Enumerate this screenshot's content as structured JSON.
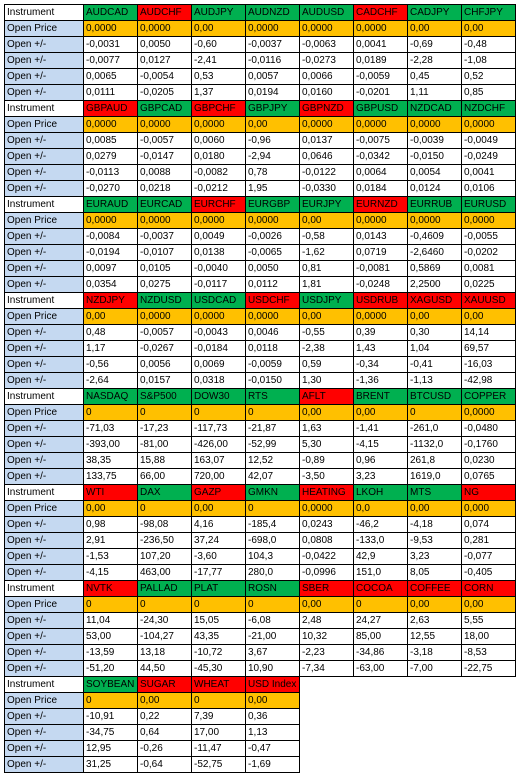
{
  "colors": {
    "green": "#00b050",
    "red": "#ff0000",
    "orange": "#ffc000",
    "label_blue": "#c5d9f1"
  },
  "labels": {
    "instrument": "Instrument",
    "open_price": "Open Price",
    "open_delta": "Open +/-"
  },
  "blocks": [
    {
      "instruments": [
        {
          "name": "AUDCAD",
          "color": "green"
        },
        {
          "name": "AUDCHF",
          "color": "red"
        },
        {
          "name": "AUDJPY",
          "color": "green"
        },
        {
          "name": "AUDNZD",
          "color": "green"
        },
        {
          "name": "AUDUSD",
          "color": "green"
        },
        {
          "name": "CADCHF",
          "color": "red"
        },
        {
          "name": "CADJPY",
          "color": "green"
        },
        {
          "name": "CHFJPY",
          "color": "green"
        }
      ],
      "open_price": [
        "0,0000",
        "0,0000",
        "0,00",
        "0,0000",
        "0,0000",
        "0,0000",
        "0,00",
        "0,00"
      ],
      "rows": [
        [
          "-0,0031",
          "0,0050",
          "-0,60",
          "-0,0037",
          "-0,0063",
          "0,0041",
          "-0,69",
          "-0,48"
        ],
        [
          "-0,0077",
          "0,0127",
          "-2,41",
          "-0,0116",
          "-0,0273",
          "0,0189",
          "-2,28",
          "-1,08"
        ],
        [
          "0,0065",
          "-0,0054",
          "0,53",
          "0,0057",
          "0,0066",
          "-0,0059",
          "0,45",
          "0,52"
        ],
        [
          "0,0111",
          "-0,0205",
          "1,37",
          "0,0194",
          "0,0160",
          "-0,0201",
          "1,11",
          "0,85"
        ]
      ]
    },
    {
      "instruments": [
        {
          "name": "GBPAUD",
          "color": "red"
        },
        {
          "name": "GBPCAD",
          "color": "green"
        },
        {
          "name": "GBPCHF",
          "color": "red"
        },
        {
          "name": "GBPJPY",
          "color": "green"
        },
        {
          "name": "GBPNZD",
          "color": "red"
        },
        {
          "name": "GBPUSD",
          "color": "green"
        },
        {
          "name": "NZDCAD",
          "color": "green"
        },
        {
          "name": "NZDCHF",
          "color": "green"
        }
      ],
      "open_price": [
        "0,0000",
        "0,0000",
        "0,0000",
        "0,00",
        "0,0000",
        "0,0000",
        "0,0000",
        "0,0000"
      ],
      "rows": [
        [
          "0,0085",
          "-0,0057",
          "0,0060",
          "-0,96",
          "0,0137",
          "-0,0075",
          "-0,0039",
          "-0,0049"
        ],
        [
          "0,0279",
          "-0,0147",
          "0,0180",
          "-2,94",
          "0,0646",
          "-0,0342",
          "-0,0150",
          "-0,0249"
        ],
        [
          "-0,0113",
          "0,0088",
          "-0,0082",
          "0,78",
          "-0,0122",
          "0,0064",
          "0,0054",
          "0,0041"
        ],
        [
          "-0,0270",
          "0,0218",
          "-0,0212",
          "1,95",
          "-0,0330",
          "0,0184",
          "0,0124",
          "0,0106"
        ]
      ]
    },
    {
      "instruments": [
        {
          "name": "EURAUD",
          "color": "green"
        },
        {
          "name": "EURCAD",
          "color": "green"
        },
        {
          "name": "EURCHF",
          "color": "red"
        },
        {
          "name": "EURGBP",
          "color": "green"
        },
        {
          "name": "EURJPY",
          "color": "green"
        },
        {
          "name": "EURNZD",
          "color": "red"
        },
        {
          "name": "EURRUB",
          "color": "green"
        },
        {
          "name": "EURUSD",
          "color": "green"
        }
      ],
      "open_price": [
        "0,0000",
        "0,0000",
        "0,0000",
        "0,0000",
        "0,00",
        "0,0000",
        "0,0000",
        "0,0000"
      ],
      "rows": [
        [
          "-0,0084",
          "-0,0037",
          "0,0049",
          "-0,0026",
          "-0,58",
          "0,0143",
          "-0,4609",
          "-0,0055"
        ],
        [
          "-0,0194",
          "-0,0107",
          "0,0138",
          "-0,0065",
          "-1,62",
          "0,0719",
          "-2,6460",
          "-0,0202"
        ],
        [
          "0,0097",
          "0,0105",
          "-0,0040",
          "0,0050",
          "0,81",
          "-0,0081",
          "0,5869",
          "0,0081"
        ],
        [
          "0,0354",
          "0,0275",
          "-0,0117",
          "0,0112",
          "1,81",
          "-0,0248",
          "2,2500",
          "0,0225"
        ]
      ]
    },
    {
      "instruments": [
        {
          "name": "NZDJPY",
          "color": "red"
        },
        {
          "name": "NZDUSD",
          "color": "green"
        },
        {
          "name": "USDCAD",
          "color": "green"
        },
        {
          "name": "USDCHF",
          "color": "red"
        },
        {
          "name": "USDJPY",
          "color": "green"
        },
        {
          "name": "USDRUB",
          "color": "red"
        },
        {
          "name": "XAGUSD",
          "color": "red"
        },
        {
          "name": "XAUUSD",
          "color": "red"
        }
      ],
      "open_price": [
        "0,00",
        "0,0000",
        "0,0000",
        "0,0000",
        "0,00",
        "0,0000",
        "0,00",
        "0,00"
      ],
      "rows": [
        [
          "0,48",
          "-0,0057",
          "-0,0043",
          "0,0046",
          "-0,55",
          "0,39",
          "0,30",
          "14,14"
        ],
        [
          "1,17",
          "-0,0267",
          "-0,0184",
          "0,0118",
          "-2,38",
          "1,43",
          "1,04",
          "69,57"
        ],
        [
          "-0,56",
          "0,0056",
          "0,0069",
          "-0,0059",
          "0,59",
          "-0,34",
          "-0,41",
          "-16,03"
        ],
        [
          "-2,64",
          "0,0157",
          "0,0318",
          "-0,0150",
          "1,30",
          "-1,36",
          "-1,13",
          "-42,98"
        ]
      ]
    },
    {
      "instruments": [
        {
          "name": "NASDAQ",
          "color": "green"
        },
        {
          "name": "S&P500",
          "color": "green"
        },
        {
          "name": "DOW30",
          "color": "green"
        },
        {
          "name": "RTS",
          "color": "green"
        },
        {
          "name": "AFLT",
          "color": "red"
        },
        {
          "name": "BRENT",
          "color": "green"
        },
        {
          "name": "BTCUSD",
          "color": "green"
        },
        {
          "name": "COPPER",
          "color": "green"
        }
      ],
      "open_price": [
        "0",
        "0",
        "0",
        "0",
        "0,00",
        "0,00",
        "0",
        "0,0000"
      ],
      "rows": [
        [
          "-71,03",
          "-17,23",
          "-117,73",
          "-21,87",
          "1,63",
          "-1,41",
          "-261,0",
          "-0,0480"
        ],
        [
          "-393,00",
          "-81,00",
          "-426,00",
          "-52,99",
          "5,30",
          "-4,15",
          "-1132,0",
          "-0,1760"
        ],
        [
          "38,35",
          "15,88",
          "163,07",
          "12,52",
          "-0,89",
          "0,96",
          "261,8",
          "0,0230"
        ],
        [
          "133,75",
          "66,00",
          "720,00",
          "42,07",
          "-3,50",
          "3,23",
          "1619,0",
          "0,0765"
        ]
      ]
    },
    {
      "instruments": [
        {
          "name": "WTI",
          "color": "red"
        },
        {
          "name": "DAX",
          "color": "green"
        },
        {
          "name": "GAZP",
          "color": "red"
        },
        {
          "name": "GMKN",
          "color": "green"
        },
        {
          "name": "HEATING",
          "color": "red"
        },
        {
          "name": "LKOH",
          "color": "green"
        },
        {
          "name": "MTS",
          "color": "green"
        },
        {
          "name": "NG",
          "color": "red"
        }
      ],
      "open_price": [
        "0,00",
        "0",
        "0,00",
        "0",
        "0,0000",
        "0,0",
        "0,00",
        "0,000"
      ],
      "rows": [
        [
          "0,98",
          "-98,08",
          "4,16",
          "-185,4",
          "0,0243",
          "-46,2",
          "-4,18",
          "0,074"
        ],
        [
          "2,91",
          "-236,50",
          "37,24",
          "-698,0",
          "0,0808",
          "-133,0",
          "-9,53",
          "0,281"
        ],
        [
          "-1,53",
          "107,20",
          "-3,60",
          "104,3",
          "-0,0422",
          "42,9",
          "3,23",
          "-0,077"
        ],
        [
          "-4,15",
          "463,00",
          "-17,77",
          "280,0",
          "-0,0996",
          "151,0",
          "8,05",
          "-0,405"
        ]
      ]
    },
    {
      "instruments": [
        {
          "name": "NVTK",
          "color": "red"
        },
        {
          "name": "PALLAD",
          "color": "green"
        },
        {
          "name": "PLAT",
          "color": "green"
        },
        {
          "name": "ROSN",
          "color": "green"
        },
        {
          "name": "SBER",
          "color": "red"
        },
        {
          "name": "COCOA",
          "color": "red"
        },
        {
          "name": "COFFEE",
          "color": "red"
        },
        {
          "name": "CORN",
          "color": "red"
        }
      ],
      "open_price": [
        "0",
        "0",
        "0",
        "0",
        "0,00",
        "0",
        "0,00",
        "0,00"
      ],
      "rows": [
        [
          "11,04",
          "-24,30",
          "15,05",
          "-6,08",
          "2,48",
          "24,27",
          "2,63",
          "5,55"
        ],
        [
          "53,00",
          "-104,27",
          "43,35",
          "-21,00",
          "10,32",
          "85,00",
          "12,55",
          "18,00"
        ],
        [
          "-13,59",
          "13,18",
          "-10,72",
          "3,67",
          "-2,23",
          "-34,86",
          "-3,18",
          "-8,53"
        ],
        [
          "-51,20",
          "44,50",
          "-45,30",
          "10,90",
          "-7,34",
          "-63,00",
          "-7,00",
          "-22,75"
        ]
      ]
    },
    {
      "instruments": [
        {
          "name": "SOYBEAN",
          "color": "green"
        },
        {
          "name": "SUGAR",
          "color": "red"
        },
        {
          "name": "WHEAT",
          "color": "red"
        },
        {
          "name": "USD Index",
          "color": "red"
        }
      ],
      "open_price": [
        "0",
        "0,00",
        "0",
        "0,00"
      ],
      "rows": [
        [
          "-10,91",
          "0,22",
          "7,39",
          "0,36"
        ],
        [
          "-34,75",
          "0,64",
          "17,00",
          "1,13"
        ],
        [
          "12,95",
          "-0,26",
          "-11,47",
          "-0,47"
        ],
        [
          "31,25",
          "-0,64",
          "-52,75",
          "-1,69"
        ]
      ]
    }
  ]
}
